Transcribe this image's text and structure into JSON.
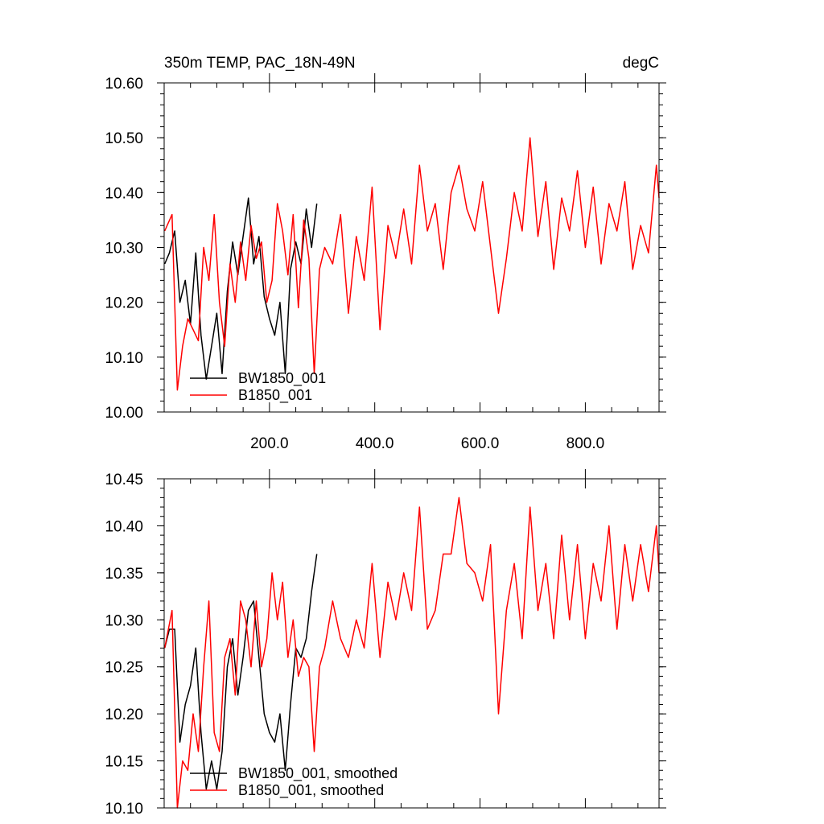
{
  "chart_data": [
    {
      "type": "line",
      "title": "350m TEMP, PAC_18N-49N",
      "units": "degC",
      "xlim": [
        0,
        940
      ],
      "ylim": [
        10.0,
        10.6
      ],
      "x_ticks": [
        200,
        400,
        600,
        800
      ],
      "x_tick_labels": [
        "200.0",
        "400.0",
        "600.0",
        "800.0"
      ],
      "y_ticks": [
        10.0,
        10.1,
        10.2,
        10.3,
        10.4,
        10.5,
        10.6
      ],
      "y_tick_labels": [
        "10.00",
        "10.10",
        "10.20",
        "10.30",
        "10.40",
        "10.50",
        "10.60"
      ],
      "legend_position": "bottom-left",
      "series": [
        {
          "name": "BW1850_001",
          "color": "#000000",
          "x": [
            1,
            10,
            20,
            30,
            40,
            50,
            60,
            70,
            80,
            90,
            100,
            110,
            120,
            130,
            140,
            150,
            160,
            170,
            180,
            190,
            200,
            210,
            220,
            230,
            240,
            250,
            260,
            270,
            280,
            290
          ],
          "values": [
            10.27,
            10.29,
            10.33,
            10.2,
            10.24,
            10.16,
            10.29,
            10.14,
            10.06,
            10.12,
            10.18,
            10.07,
            10.22,
            10.31,
            10.25,
            10.32,
            10.39,
            10.27,
            10.32,
            10.21,
            10.17,
            10.14,
            10.2,
            10.07,
            10.26,
            10.31,
            10.27,
            10.37,
            10.3,
            10.38
          ]
        },
        {
          "name": "B1850_001",
          "color": "#ff0000",
          "x": [
            1,
            15,
            25,
            35,
            45,
            55,
            65,
            75,
            85,
            95,
            105,
            115,
            125,
            135,
            145,
            155,
            165,
            175,
            185,
            195,
            205,
            215,
            225,
            235,
            245,
            255,
            265,
            275,
            285,
            295,
            305,
            320,
            335,
            350,
            365,
            380,
            395,
            410,
            425,
            440,
            455,
            470,
            485,
            500,
            515,
            530,
            545,
            560,
            575,
            590,
            605,
            620,
            635,
            650,
            665,
            680,
            695,
            710,
            725,
            740,
            755,
            770,
            785,
            800,
            815,
            830,
            845,
            860,
            875,
            890,
            905,
            920,
            935,
            940
          ],
          "values": [
            10.33,
            10.36,
            10.04,
            10.12,
            10.17,
            10.15,
            10.13,
            10.3,
            10.24,
            10.36,
            10.2,
            10.12,
            10.27,
            10.2,
            10.31,
            10.24,
            10.34,
            10.28,
            10.31,
            10.2,
            10.24,
            10.38,
            10.33,
            10.25,
            10.36,
            10.19,
            10.35,
            10.28,
            10.07,
            10.26,
            10.3,
            10.27,
            10.36,
            10.18,
            10.32,
            10.24,
            10.41,
            10.15,
            10.34,
            10.28,
            10.37,
            10.27,
            10.45,
            10.33,
            10.38,
            10.26,
            10.4,
            10.45,
            10.37,
            10.33,
            10.42,
            10.3,
            10.18,
            10.28,
            10.4,
            10.33,
            10.5,
            10.32,
            10.42,
            10.26,
            10.39,
            10.33,
            10.44,
            10.3,
            10.41,
            10.27,
            10.38,
            10.33,
            10.42,
            10.26,
            10.34,
            10.29,
            10.45,
            10.39
          ]
        }
      ]
    },
    {
      "type": "line",
      "title": "",
      "xlim": [
        0,
        940
      ],
      "ylim": [
        10.1,
        10.45
      ],
      "y_ticks": [
        10.1,
        10.15,
        10.2,
        10.25,
        10.3,
        10.35,
        10.4,
        10.45
      ],
      "y_tick_labels": [
        "10.10",
        "10.15",
        "10.20",
        "10.25",
        "10.30",
        "10.35",
        "10.40",
        "10.45"
      ],
      "legend_position": "bottom-left",
      "series": [
        {
          "name": "BW1850_001, smoothed",
          "color": "#000000",
          "x": [
            1,
            10,
            20,
            30,
            40,
            50,
            60,
            70,
            80,
            90,
            100,
            110,
            120,
            130,
            140,
            150,
            160,
            170,
            180,
            190,
            200,
            210,
            220,
            230,
            240,
            250,
            260,
            270,
            280,
            290
          ],
          "values": [
            10.27,
            10.29,
            10.29,
            10.17,
            10.21,
            10.23,
            10.27,
            10.18,
            10.12,
            10.15,
            10.12,
            10.16,
            10.25,
            10.28,
            10.22,
            10.26,
            10.31,
            10.32,
            10.26,
            10.2,
            10.18,
            10.17,
            10.2,
            10.14,
            10.21,
            10.27,
            10.26,
            10.28,
            10.33,
            10.37
          ]
        },
        {
          "name": "B1850_001, smoothed",
          "color": "#ff0000",
          "x": [
            1,
            15,
            25,
            35,
            45,
            55,
            65,
            75,
            85,
            95,
            105,
            115,
            125,
            135,
            145,
            155,
            165,
            175,
            185,
            195,
            205,
            215,
            225,
            235,
            245,
            255,
            265,
            275,
            285,
            295,
            305,
            320,
            335,
            350,
            365,
            380,
            395,
            410,
            425,
            440,
            455,
            470,
            485,
            500,
            515,
            530,
            545,
            560,
            575,
            590,
            605,
            620,
            635,
            650,
            665,
            680,
            695,
            710,
            725,
            740,
            755,
            770,
            785,
            800,
            815,
            830,
            845,
            860,
            875,
            890,
            905,
            920,
            935,
            940
          ],
          "values": [
            10.27,
            10.31,
            10.1,
            10.15,
            10.14,
            10.2,
            10.16,
            10.25,
            10.32,
            10.18,
            10.16,
            10.26,
            10.28,
            10.22,
            10.32,
            10.3,
            10.25,
            10.32,
            10.25,
            10.28,
            10.35,
            10.3,
            10.34,
            10.26,
            10.3,
            10.24,
            10.26,
            10.25,
            10.16,
            10.25,
            10.27,
            10.32,
            10.28,
            10.26,
            10.3,
            10.27,
            10.36,
            10.26,
            10.34,
            10.3,
            10.35,
            10.31,
            10.42,
            10.29,
            10.31,
            10.37,
            10.37,
            10.43,
            10.36,
            10.35,
            10.32,
            10.38,
            10.2,
            10.31,
            10.36,
            10.28,
            10.42,
            10.31,
            10.36,
            10.28,
            10.39,
            10.3,
            10.38,
            10.28,
            10.36,
            10.32,
            10.4,
            10.29,
            10.38,
            10.32,
            10.38,
            10.33,
            10.4,
            10.35
          ]
        }
      ]
    }
  ]
}
